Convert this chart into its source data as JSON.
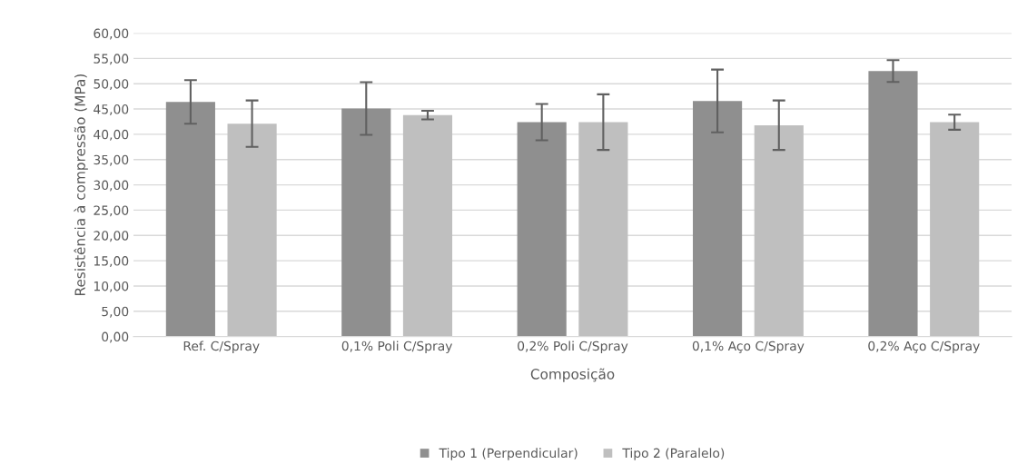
{
  "chart_data": {
    "type": "bar",
    "xlabel": "Composição",
    "ylabel": "Resistência à compressão (MPa)",
    "categories": [
      "Ref. C/Spray",
      "0,1% Poli C/Spray",
      "0,2% Poli C/Spray",
      "0,1% Aço C/Spray",
      "0,2% Aço C/Spray"
    ],
    "series": [
      {
        "name": "Tipo 1 (Perpendicular)",
        "color": "#8f8f8f",
        "values": [
          46.4,
          45.1,
          42.4,
          46.6,
          52.5
        ],
        "errors": [
          4.3,
          5.2,
          3.6,
          6.2,
          2.15
        ]
      },
      {
        "name": "Tipo 2 (Paralelo)",
        "color": "#bfbfbf",
        "values": [
          42.1,
          43.8,
          42.4,
          41.8,
          42.4
        ],
        "errors": [
          4.6,
          0.85,
          5.5,
          4.9,
          1.5
        ]
      }
    ],
    "ylim": [
      0,
      60
    ],
    "yticks": [
      {
        "value": 0,
        "label": "0,00"
      },
      {
        "value": 5,
        "label": "5,00"
      },
      {
        "value": 10,
        "label": "10,00"
      },
      {
        "value": 15,
        "label": "15,00"
      },
      {
        "value": 20,
        "label": "20,00"
      },
      {
        "value": 25,
        "label": "25,00"
      },
      {
        "value": 30,
        "label": "30,00"
      },
      {
        "value": 35,
        "label": "35,00"
      },
      {
        "value": 40,
        "label": "40,00"
      },
      {
        "value": 45,
        "label": "45,00"
      },
      {
        "value": 50,
        "label": "50,00"
      },
      {
        "value": 55,
        "label": "55,00"
      },
      {
        "value": 60,
        "label": "60,00"
      }
    ],
    "grid": "y",
    "legend": "bottom"
  }
}
